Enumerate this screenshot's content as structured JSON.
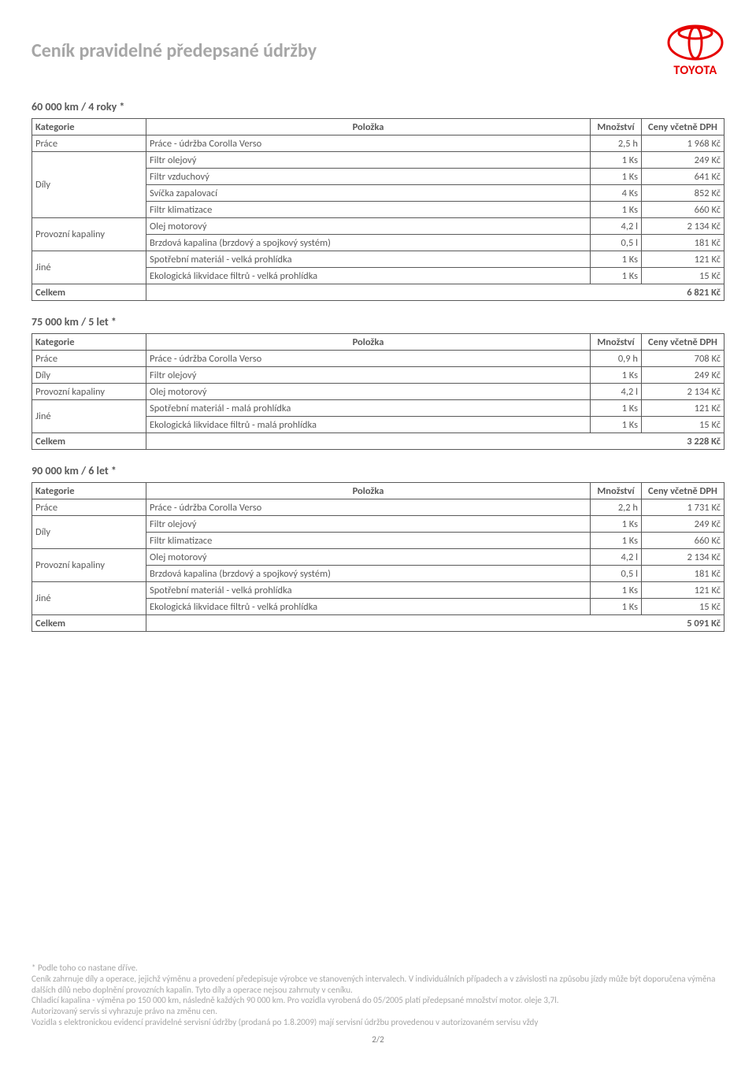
{
  "page_title": "Ceník pravidelné předepsané údržby",
  "logo_text": "TOYOTA",
  "logo_color": "#e60000",
  "page_number": "2/2",
  "headers": {
    "kategorie": "Kategorie",
    "polozka": "Položka",
    "mnozstvi": "Množství",
    "cena": "Ceny včetně DPH"
  },
  "celkem_label": "Celkem",
  "sections": [
    {
      "heading": "60 000 km / 4 roky *",
      "rows": [
        {
          "cat": "Práce",
          "item": "Práce - údržba Corolla Verso",
          "qty": "2,5 h",
          "price": "1 968 Kč",
          "rowspan": 1
        },
        {
          "cat": "Díly",
          "item": "Filtr olejový",
          "qty": "1 Ks",
          "price": "249 Kč",
          "rowspan": 4
        },
        {
          "cat": "",
          "item": "Filtr vzduchový",
          "qty": "1 Ks",
          "price": "641 Kč",
          "rowspan": 0
        },
        {
          "cat": "",
          "item": "Svíčka zapalovací",
          "qty": "4 Ks",
          "price": "852 Kč",
          "rowspan": 0
        },
        {
          "cat": "",
          "item": "Filtr klimatizace",
          "qty": "1 Ks",
          "price": "660 Kč",
          "rowspan": 0
        },
        {
          "cat": "Provozní kapaliny",
          "item": "Olej motorový",
          "qty": "4,2 l",
          "price": "2 134 Kč",
          "rowspan": 2
        },
        {
          "cat": "",
          "item": "Brzdová kapalina (brzdový a spojkový systém)",
          "qty": "0,5 l",
          "price": "181 Kč",
          "rowspan": 0
        },
        {
          "cat": "Jiné",
          "item": "Spotřební materiál - velká prohlídka",
          "qty": "1 Ks",
          "price": "121 Kč",
          "rowspan": 2
        },
        {
          "cat": "",
          "item": "Ekologická likvidace filtrů - velká prohlídka",
          "qty": "1 Ks",
          "price": "15 Kč",
          "rowspan": 0
        }
      ],
      "total": "6 821 Kč"
    },
    {
      "heading": "75 000 km / 5 let *",
      "rows": [
        {
          "cat": "Práce",
          "item": "Práce - údržba Corolla Verso",
          "qty": "0,9 h",
          "price": "708 Kč",
          "rowspan": 1
        },
        {
          "cat": "Díly",
          "item": "Filtr olejový",
          "qty": "1 Ks",
          "price": "249 Kč",
          "rowspan": 1
        },
        {
          "cat": "Provozní kapaliny",
          "item": "Olej motorový",
          "qty": "4,2 l",
          "price": "2 134 Kč",
          "rowspan": 1
        },
        {
          "cat": "Jiné",
          "item": "Spotřební materiál - malá prohlídka",
          "qty": "1 Ks",
          "price": "121 Kč",
          "rowspan": 2
        },
        {
          "cat": "",
          "item": "Ekologická likvidace filtrů - malá prohlídka",
          "qty": "1 Ks",
          "price": "15 Kč",
          "rowspan": 0
        }
      ],
      "total": "3 228 Kč"
    },
    {
      "heading": "90 000 km / 6 let *",
      "rows": [
        {
          "cat": "Práce",
          "item": "Práce - údržba Corolla Verso",
          "qty": "2,2 h",
          "price": "1 731 Kč",
          "rowspan": 1
        },
        {
          "cat": "Díly",
          "item": "Filtr olejový",
          "qty": "1 Ks",
          "price": "249 Kč",
          "rowspan": 2
        },
        {
          "cat": "",
          "item": "Filtr klimatizace",
          "qty": "1 Ks",
          "price": "660 Kč",
          "rowspan": 0
        },
        {
          "cat": "Provozní kapaliny",
          "item": "Olej motorový",
          "qty": "4,2 l",
          "price": "2 134 Kč",
          "rowspan": 2
        },
        {
          "cat": "",
          "item": "Brzdová kapalina (brzdový a spojkový systém)",
          "qty": "0,5 l",
          "price": "181 Kč",
          "rowspan": 0
        },
        {
          "cat": "Jiné",
          "item": "Spotřební materiál - velká prohlídka",
          "qty": "1 Ks",
          "price": "121 Kč",
          "rowspan": 2
        },
        {
          "cat": "",
          "item": "Ekologická likvidace filtrů - velká prohlídka",
          "qty": "1 Ks",
          "price": "15 Kč",
          "rowspan": 0
        }
      ],
      "total": "5 091 Kč"
    }
  ],
  "footer_lines": [
    "* Podle toho co nastane dříve.",
    "Ceník zahrnuje díly a operace, jejichž výměnu a provedení předepisuje výrobce ve stanovených intervalech. V individuálních případech a v závislosti na způsobu jízdy může být doporučena výměna dalších dílů nebo doplnění provozních kapalin. Tyto díly a operace nejsou zahrnuty v ceníku.",
    "Chladicí kapalina - výměna po 150 000 km, následně každých 90 000 km. Pro vozidla vyrobená do 05/2005 platí předepsané množství motor. oleje 3,7l.",
    "Autorizovaný servis si vyhrazuje právo na změnu cen.",
    "Vozidla s elektronickou evidencí pravidelné servisní údržby (prodaná po 1.8.2009) mají servisní údržbu provedenou v autorizovaném servisu vždy"
  ]
}
